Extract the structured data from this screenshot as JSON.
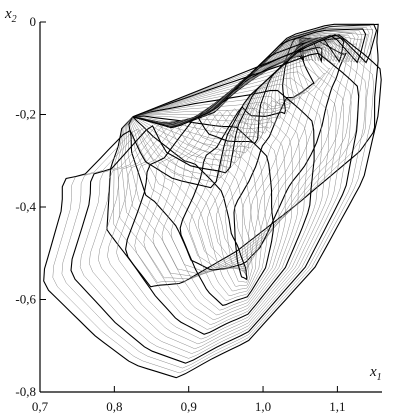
{
  "chart_data": {
    "type": "line",
    "xlabel": "x",
    "xlabel_sub": "1",
    "ylabel": "x",
    "ylabel_sub": "2",
    "xlim": [
      0.7,
      1.16
    ],
    "ylim": [
      -0.8,
      0.0
    ],
    "x_ticks": [
      {
        "value": 0.7,
        "label": "0,7"
      },
      {
        "value": 0.8,
        "label": "0,8"
      },
      {
        "value": 0.9,
        "label": "0,9"
      },
      {
        "value": 1.0,
        "label": "1,0"
      },
      {
        "value": 1.1,
        "label": "1,1"
      }
    ],
    "y_ticks": [
      {
        "value": 0.0,
        "label": "0"
      },
      {
        "value": -0.2,
        "label": "-0,2"
      },
      {
        "value": -0.4,
        "label": "-0,4"
      },
      {
        "value": -0.6,
        "label": "-0,6"
      },
      {
        "value": -0.8,
        "label": "-0,8"
      }
    ],
    "grid": false,
    "legend": false,
    "line_color": "#000000",
    "inner_curve": [
      [
        0.825,
        -0.205
      ],
      [
        0.835,
        -0.208
      ],
      [
        0.885,
        -0.225
      ],
      [
        0.935,
        -0.195
      ],
      [
        1.035,
        -0.035
      ],
      [
        1.0895,
        -0.01
      ],
      [
        1.155,
        -0.005
      ],
      [
        1.153,
        -0.04
      ],
      [
        1.155,
        -0.08
      ],
      [
        1.15,
        -0.165
      ],
      [
        1.15,
        -0.2
      ],
      [
        1.15,
        -0.235
      ],
      [
        1.13,
        -0.28
      ],
      [
        1.045,
        -0.395
      ],
      [
        0.965,
        -0.495
      ],
      [
        0.89,
        -0.565
      ],
      [
        0.855,
        -0.57
      ],
      [
        0.85,
        -0.575
      ],
      [
        0.79,
        -0.45
      ],
      [
        0.795,
        -0.315
      ],
      [
        0.805,
        -0.27
      ],
      [
        0.81,
        -0.23
      ],
      [
        0.825,
        -0.205
      ]
    ],
    "outer_curve": [
      [
        0.825,
        -0.205
      ],
      [
        0.88,
        -0.23
      ],
      [
        0.935,
        -0.19
      ],
      [
        1.035,
        -0.03
      ],
      [
        1.09,
        -0.005
      ],
      [
        1.155,
        -0.005
      ],
      [
        1.14,
        -0.09
      ],
      [
        1.1,
        -0.025
      ],
      [
        1.05,
        -0.06
      ],
      [
        0.978,
        -0.165
      ],
      [
        0.95,
        -0.25
      ],
      [
        0.935,
        -0.36
      ],
      [
        0.88,
        -0.34
      ],
      [
        0.84,
        -0.3
      ],
      [
        0.82,
        -0.23
      ],
      [
        0.76,
        -0.33
      ],
      [
        0.73,
        -0.34
      ],
      [
        0.73,
        -0.4
      ],
      [
        0.705,
        -0.54
      ],
      [
        0.705,
        -0.57
      ],
      [
        0.775,
        -0.68
      ],
      [
        0.825,
        -0.74
      ],
      [
        0.885,
        -0.77
      ],
      [
        0.935,
        -0.725
      ],
      [
        0.98,
        -0.69
      ],
      [
        1.07,
        -0.53
      ],
      [
        1.135,
        -0.34
      ],
      [
        1.155,
        -0.2
      ],
      [
        1.16,
        -0.105
      ],
      [
        1.14,
        -0.075
      ],
      [
        1.1,
        -0.025
      ],
      [
        1.05,
        -0.06
      ],
      [
        0.825,
        -0.205
      ]
    ],
    "n_curves": 34
  }
}
